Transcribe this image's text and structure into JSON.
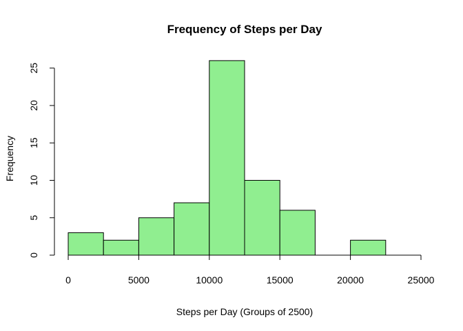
{
  "colors": {
    "bar_fill": "#90EE90",
    "bar_stroke": "#000000",
    "axis": "#000000",
    "background": "#FFFFFF"
  },
  "chart_data": {
    "type": "bar",
    "subtype": "histogram",
    "title": "Frequency of Steps per Day",
    "xlabel": "Steps per Day (Groups of 2500)",
    "ylabel": "Frequency",
    "bins": [
      {
        "from": 0,
        "to": 2500,
        "count": 3
      },
      {
        "from": 2500,
        "to": 5000,
        "count": 2
      },
      {
        "from": 5000,
        "to": 7500,
        "count": 5
      },
      {
        "from": 7500,
        "to": 10000,
        "count": 7
      },
      {
        "from": 10000,
        "to": 12500,
        "count": 26
      },
      {
        "from": 12500,
        "to": 15000,
        "count": 10
      },
      {
        "from": 15000,
        "to": 17500,
        "count": 6
      },
      {
        "from": 17500,
        "to": 20000,
        "count": 0
      },
      {
        "from": 20000,
        "to": 22500,
        "count": 2
      },
      {
        "from": 22500,
        "to": 25000,
        "count": 0
      }
    ],
    "xlim": [
      0,
      25000
    ],
    "ylim": [
      0,
      26
    ],
    "x_ticks": [
      0,
      5000,
      10000,
      15000,
      20000,
      25000
    ],
    "y_ticks": [
      0,
      5,
      10,
      15,
      20,
      25
    ],
    "grid": false,
    "legend": "none"
  }
}
